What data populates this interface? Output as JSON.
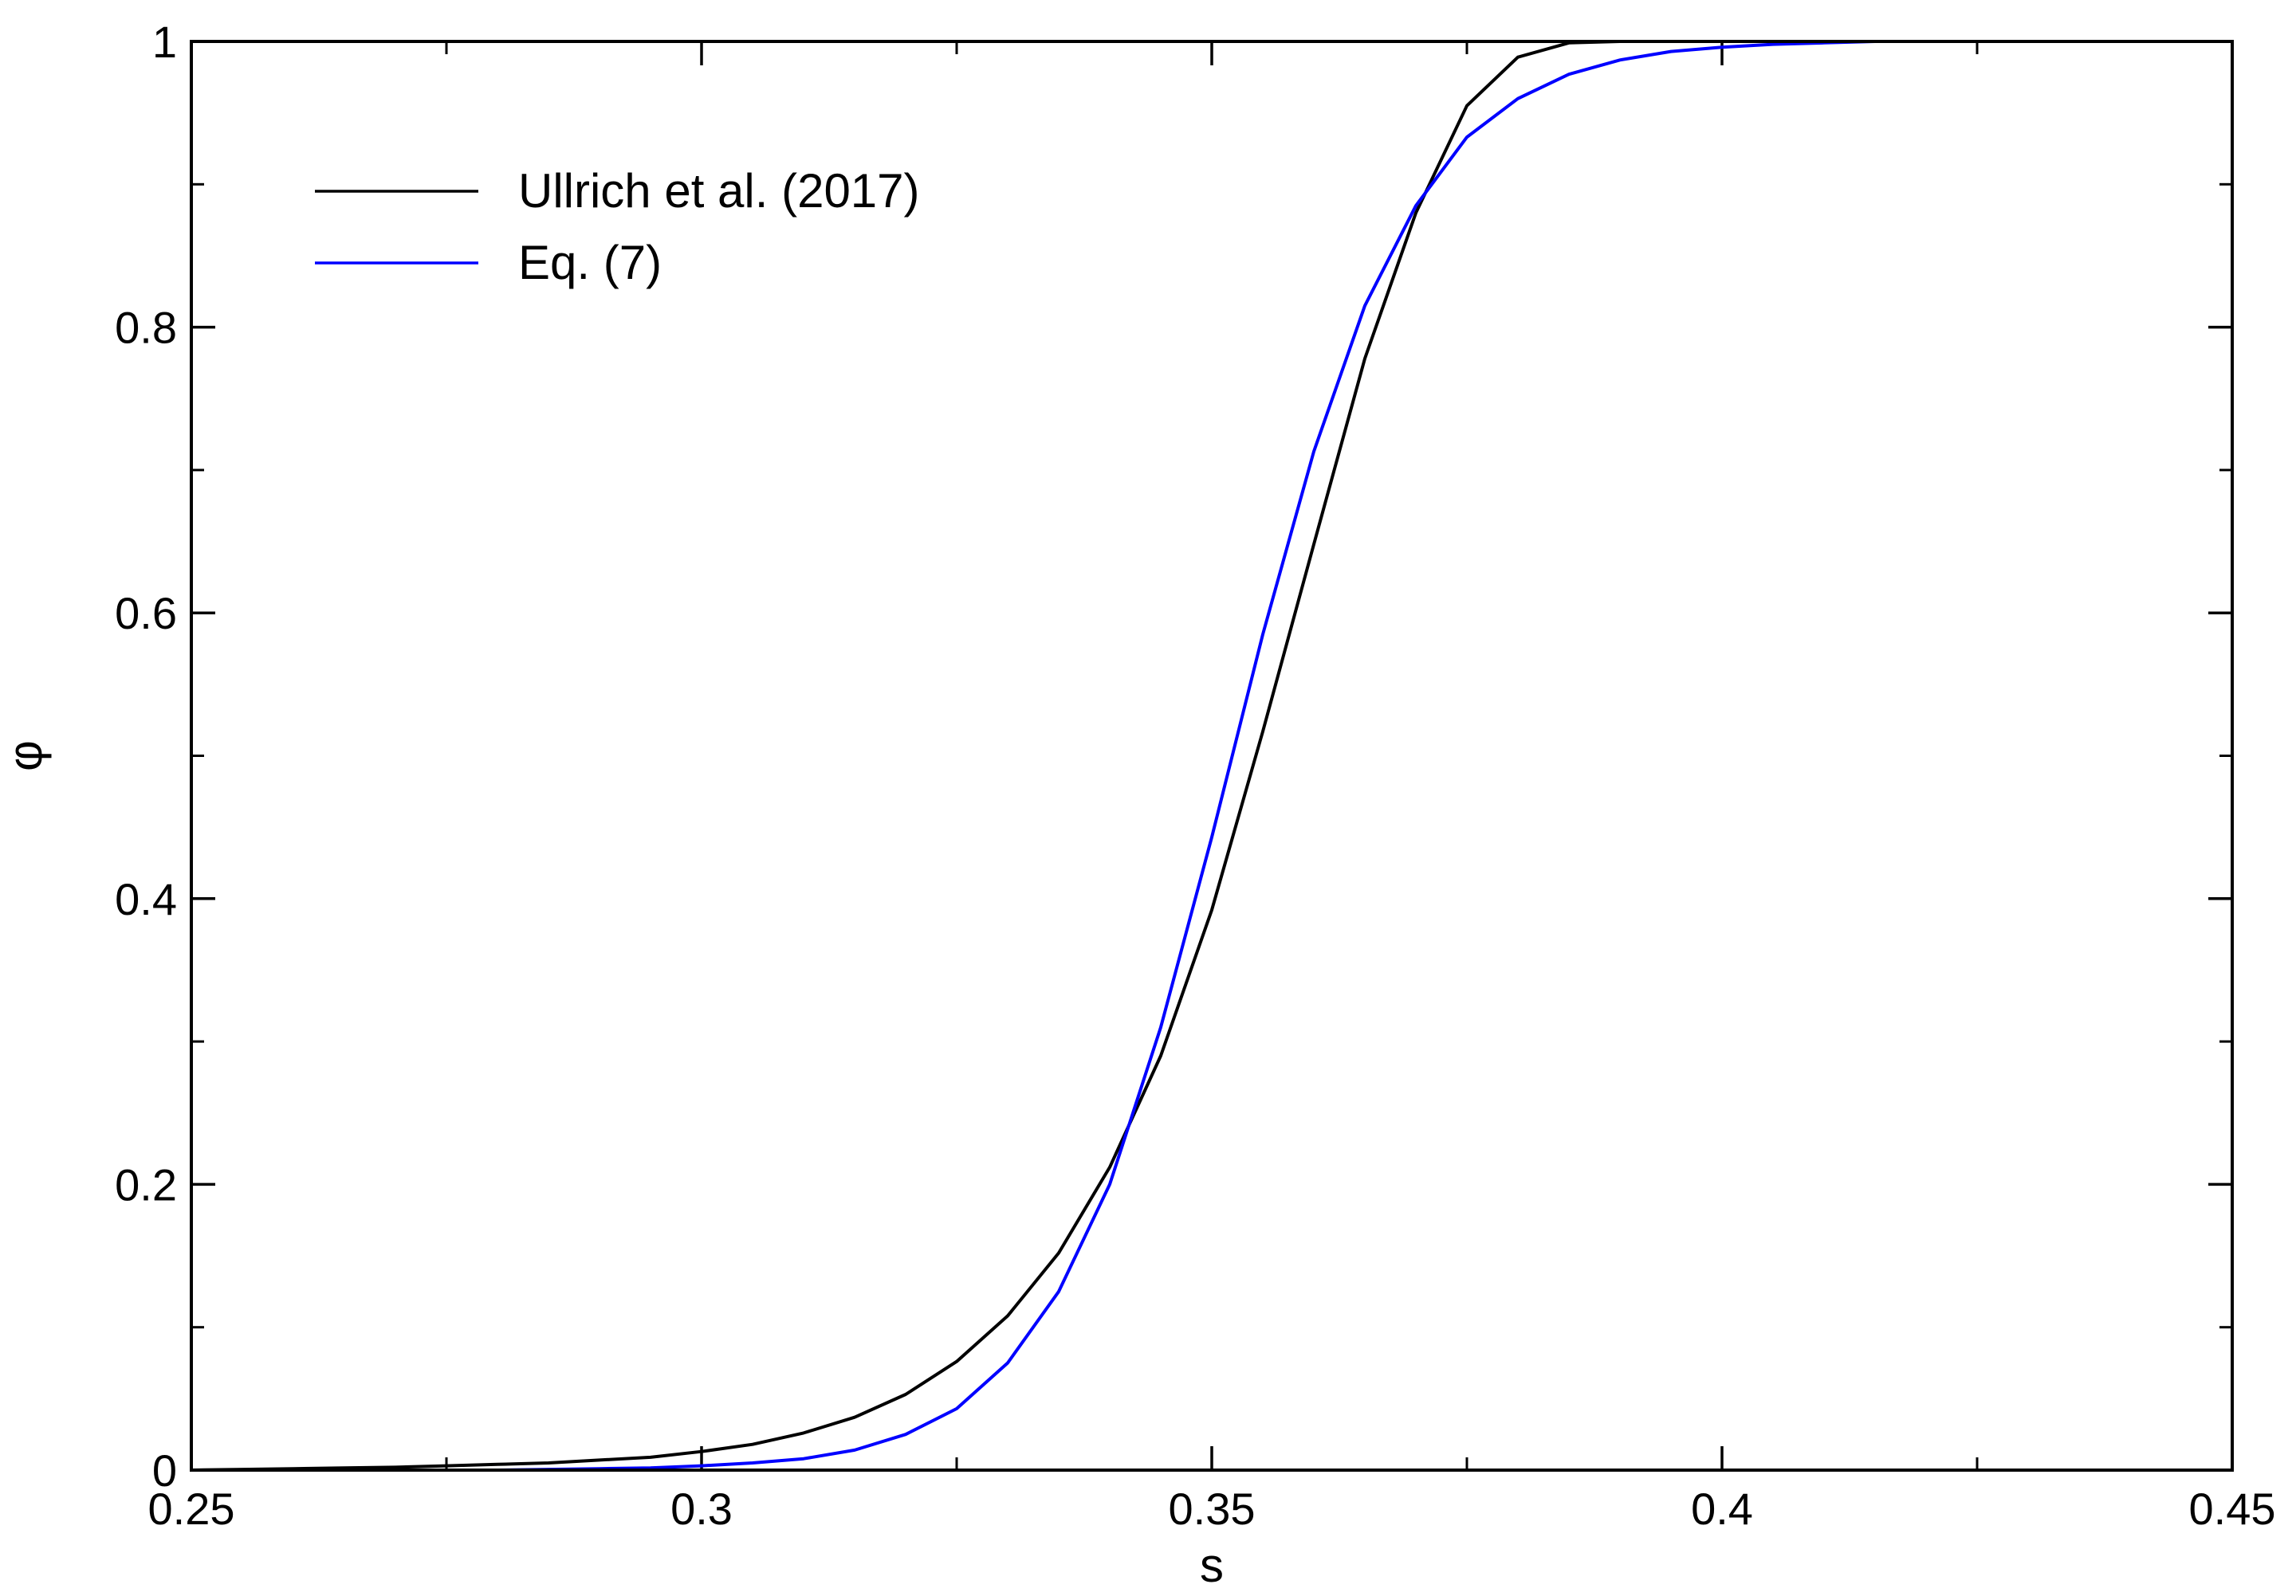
{
  "chart_data": {
    "type": "line",
    "title": "",
    "xlabel": "s",
    "ylabel": "φ",
    "xlim": [
      0.25,
      0.45
    ],
    "ylim": [
      0,
      1
    ],
    "grid": false,
    "legend_position": "top-left",
    "x_ticks": [
      0.25,
      0.3,
      0.35,
      0.4,
      0.45
    ],
    "x_tick_labels": [
      "0.25",
      "0.3",
      "0.35",
      "0.4",
      "0.45"
    ],
    "x_minor_ticks": [
      0.275,
      0.325,
      0.375,
      0.425
    ],
    "y_ticks": [
      0,
      0.2,
      0.4,
      0.6,
      0.8,
      1
    ],
    "y_tick_labels": [
      "0",
      "0.2",
      "0.4",
      "0.6",
      "0.8",
      "1"
    ],
    "y_minor_ticks": [
      0.1,
      0.3,
      0.5,
      0.7,
      0.9
    ],
    "series": [
      {
        "name": "Ullrich et al. (2017)",
        "color": "#000000",
        "x": [
          0.25,
          0.255,
          0.26,
          0.265,
          0.27,
          0.275,
          0.28,
          0.285,
          0.29,
          0.295,
          0.3,
          0.305,
          0.31,
          0.315,
          0.32,
          0.325,
          0.33,
          0.335,
          0.34,
          0.345,
          0.35,
          0.355,
          0.36,
          0.365,
          0.37,
          0.375,
          0.38,
          0.385,
          0.39,
          0.395,
          0.4,
          0.405,
          0.41,
          0.415,
          0.42
        ],
        "y": [
          0.0,
          0.0005,
          0.001,
          0.0015,
          0.002,
          0.003,
          0.004,
          0.005,
          0.007,
          0.009,
          0.013,
          0.018,
          0.026,
          0.037,
          0.053,
          0.076,
          0.108,
          0.152,
          0.212,
          0.29,
          0.392,
          0.517,
          0.648,
          0.778,
          0.88,
          0.955,
          0.989,
          0.999,
          1.0,
          1.0,
          1.0,
          1.0,
          1.0,
          1.0,
          1.0
        ]
      },
      {
        "name": "Eq. (7)",
        "color": "#0000ff",
        "x": [
          0.25,
          0.255,
          0.26,
          0.265,
          0.27,
          0.275,
          0.28,
          0.285,
          0.29,
          0.295,
          0.3,
          0.305,
          0.31,
          0.315,
          0.32,
          0.325,
          0.33,
          0.335,
          0.34,
          0.345,
          0.35,
          0.355,
          0.36,
          0.365,
          0.37,
          0.375,
          0.38,
          0.385,
          0.39,
          0.395,
          0.4,
          0.405,
          0.41,
          0.415,
          0.42
        ],
        "y": [
          0.0,
          0.0,
          0.0,
          0.0,
          0.0,
          0.0,
          0.0,
          0.0005,
          0.001,
          0.0015,
          0.003,
          0.005,
          0.008,
          0.014,
          0.025,
          0.043,
          0.075,
          0.125,
          0.2,
          0.31,
          0.443,
          0.585,
          0.713,
          0.815,
          0.885,
          0.933,
          0.96,
          0.977,
          0.987,
          0.993,
          0.996,
          0.998,
          0.999,
          1.0,
          1.0
        ]
      }
    ]
  }
}
